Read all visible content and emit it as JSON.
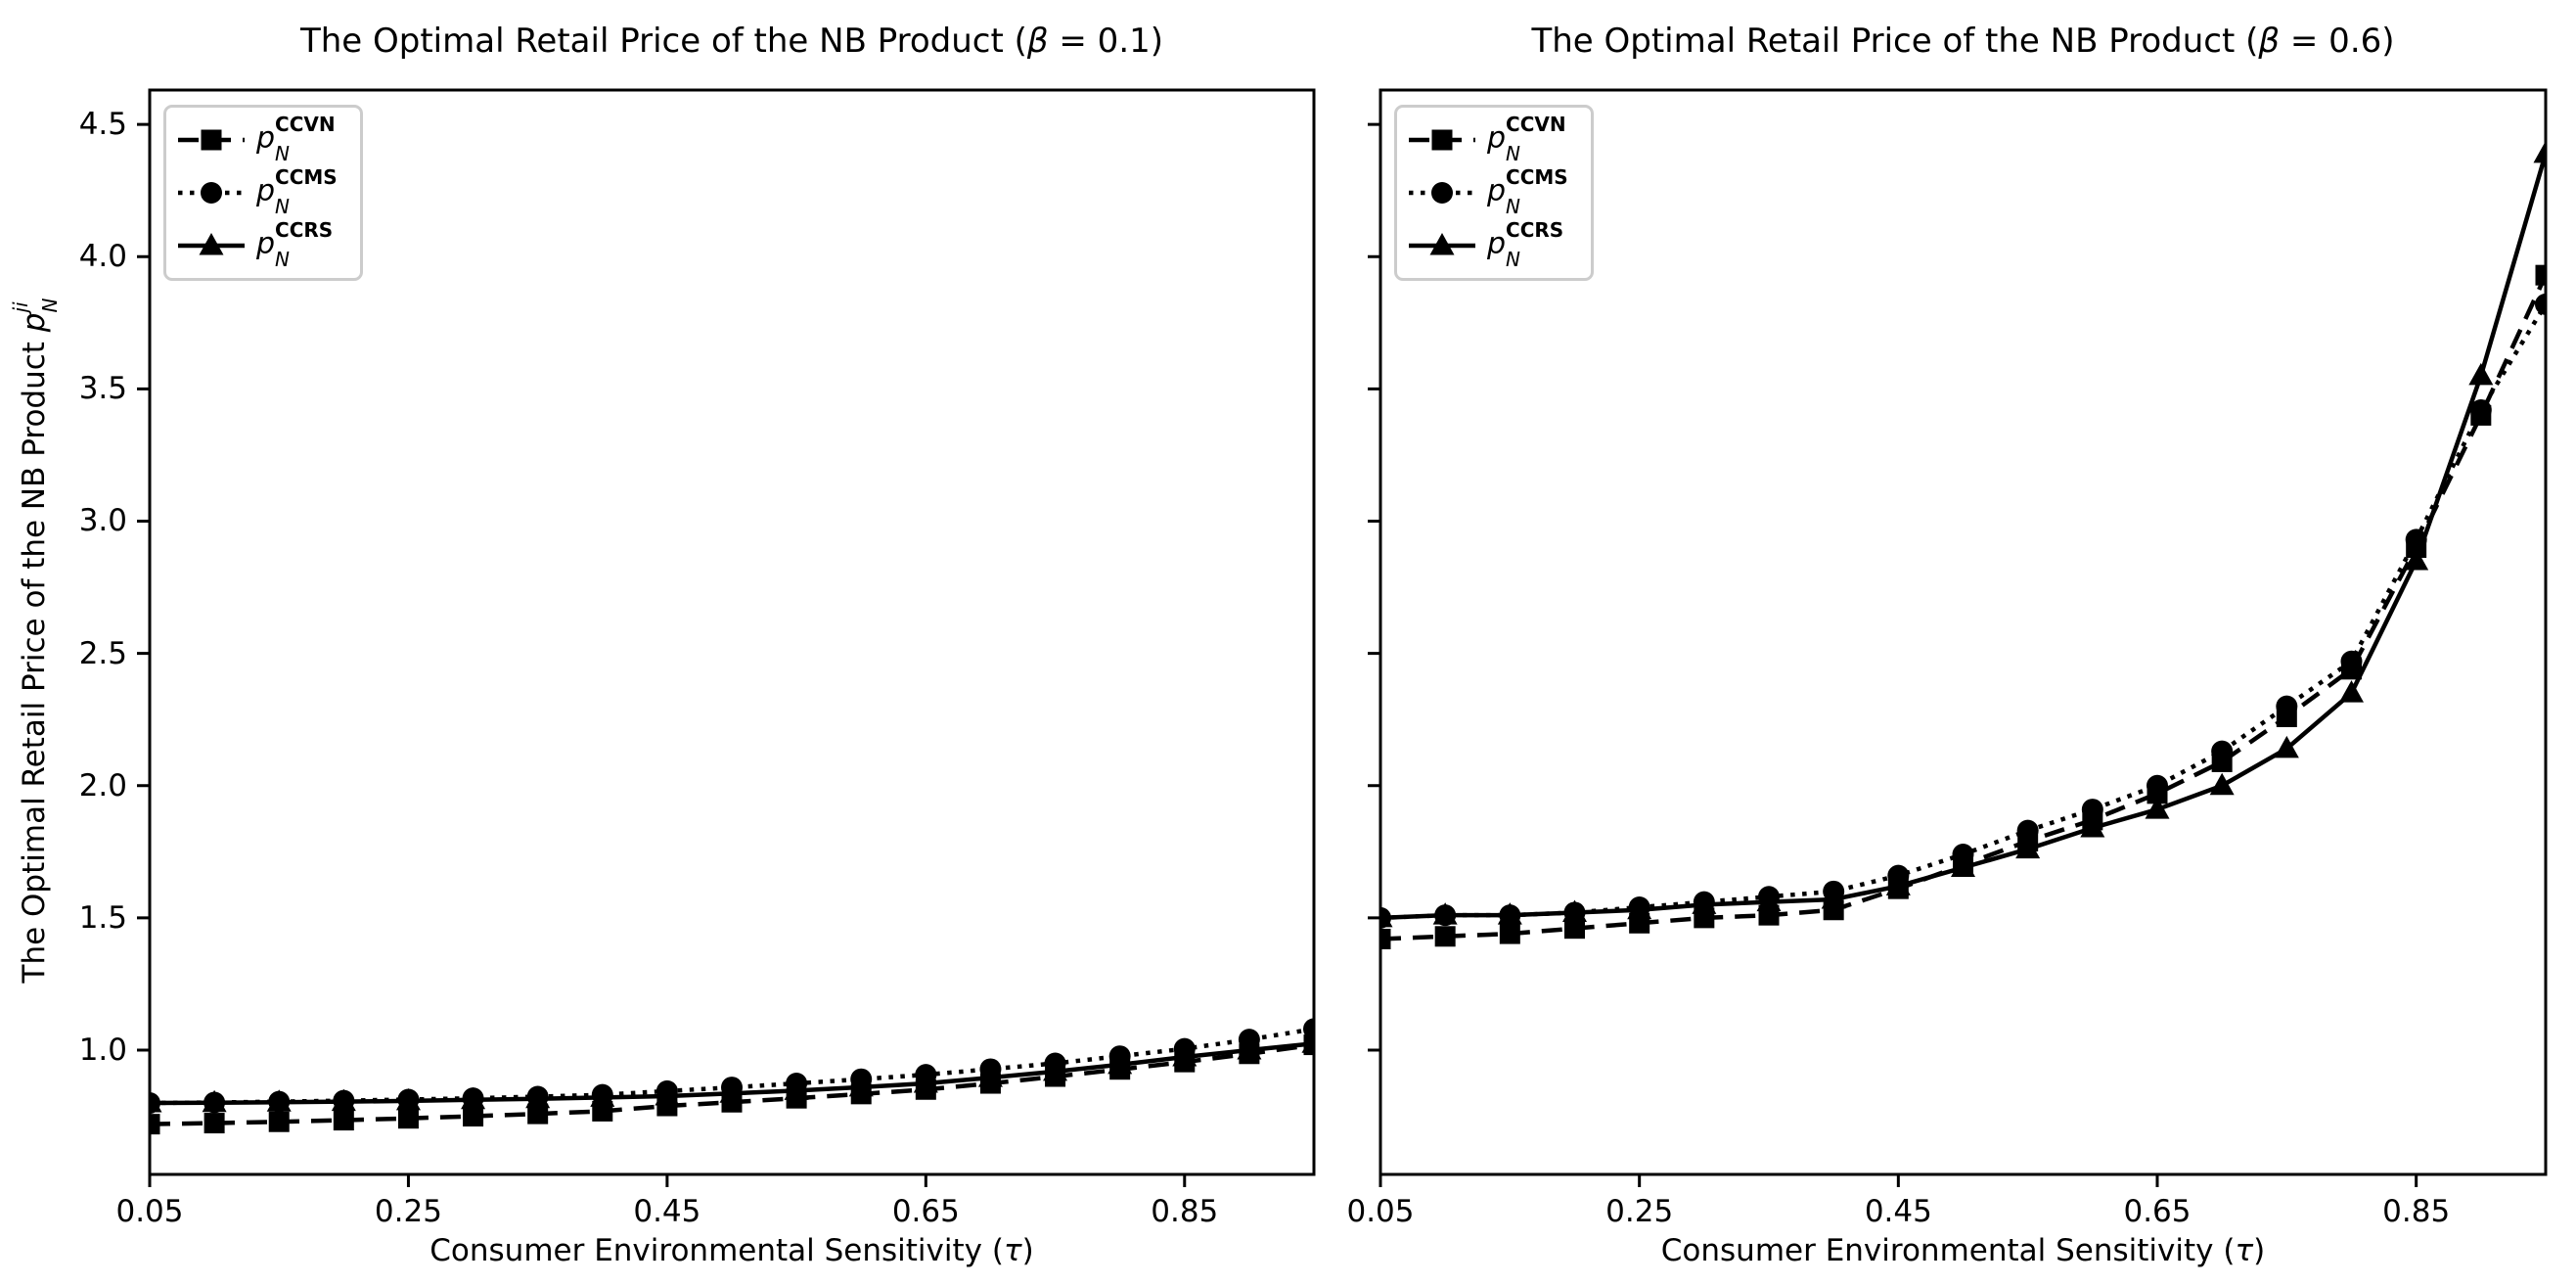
{
  "figure": {
    "background": "#ffffff",
    "ink_color": "#000000",
    "legend_border_color": "#cccccc"
  },
  "ylabel": {
    "prefix": "The Optimal Retail Price of the NB Product ",
    "var": "p",
    "sup": "ji",
    "sub": "N"
  },
  "xlabel": {
    "prefix": "Consumer Environmental Sensitivity (",
    "var": "τ",
    "suffix": ")"
  },
  "chart_data": [
    {
      "type": "line",
      "title": "The Optimal Retail Price of the NB Product (β = 0.1)",
      "title_prefix": "The Optimal Retail Price of the NB Product (",
      "beta_symbol": "β",
      "title_suffix": " = 0.1)",
      "xlabel": "Consumer Environmental Sensitivity (τ)",
      "ylabel": "The Optimal Retail Price of the NB Product p_N^ji",
      "xlim": [
        0.05,
        0.95
      ],
      "ylim": [
        0.53,
        4.63
      ],
      "grid": false,
      "legend_position": "upper left",
      "show_ytick_labels": true,
      "xticks": [
        0.05,
        0.25,
        0.45,
        0.65,
        0.85
      ],
      "xtick_labels": [
        "0.05",
        "0.25",
        "0.45",
        "0.65",
        "0.85"
      ],
      "yticks": [
        1.0,
        1.5,
        2.0,
        2.5,
        3.0,
        3.5,
        4.0,
        4.5
      ],
      "ytick_labels": [
        "1.0",
        "1.5",
        "2.0",
        "2.5",
        "3.0",
        "3.5",
        "4.0",
        "4.5"
      ],
      "x": [
        0.05,
        0.1,
        0.15,
        0.2,
        0.25,
        0.3,
        0.35,
        0.4,
        0.45,
        0.5,
        0.55,
        0.6,
        0.65,
        0.7,
        0.75,
        0.8,
        0.85,
        0.9,
        0.95
      ],
      "series": [
        {
          "name": "CCVN",
          "label_base": "p",
          "label_sup": "CCVN",
          "label_sub": "N",
          "line": "dashed",
          "marker": "square",
          "values": [
            0.72,
            0.724,
            0.729,
            0.735,
            0.742,
            0.75,
            0.759,
            0.769,
            0.789,
            0.803,
            0.818,
            0.834,
            0.851,
            0.874,
            0.9,
            0.927,
            0.955,
            0.986,
            1.02
          ]
        },
        {
          "name": "CCMS",
          "label_base": "p",
          "label_sup": "CCMS",
          "label_sub": "N",
          "line": "dotted",
          "marker": "circle",
          "values": [
            0.8,
            0.802,
            0.805,
            0.809,
            0.813,
            0.818,
            0.824,
            0.831,
            0.845,
            0.859,
            0.874,
            0.89,
            0.907,
            0.928,
            0.95,
            0.977,
            1.005,
            1.04,
            1.08
          ]
        },
        {
          "name": "CCRS",
          "label_base": "p",
          "label_sup": "CCRS",
          "label_sub": "N",
          "line": "solid",
          "marker": "triangle",
          "values": [
            0.8,
            0.801,
            0.803,
            0.805,
            0.808,
            0.812,
            0.816,
            0.821,
            0.826,
            0.836,
            0.847,
            0.86,
            0.874,
            0.896,
            0.919,
            0.945,
            0.974,
            1.0,
            1.025
          ]
        }
      ]
    },
    {
      "type": "line",
      "title": "The Optimal Retail Price of the NB Product (β = 0.6)",
      "title_prefix": "The Optimal Retail Price of the NB Product (",
      "beta_symbol": "β",
      "title_suffix": " = 0.6)",
      "xlabel": "Consumer Environmental Sensitivity (τ)",
      "ylabel": "The Optimal Retail Price of the NB Product p_N^ji",
      "xlim": [
        0.05,
        0.95
      ],
      "ylim": [
        0.53,
        4.63
      ],
      "grid": false,
      "legend_position": "upper left",
      "show_ytick_labels": false,
      "xticks": [
        0.05,
        0.25,
        0.45,
        0.65,
        0.85
      ],
      "xtick_labels": [
        "0.05",
        "0.25",
        "0.45",
        "0.65",
        "0.85"
      ],
      "yticks": [
        1.0,
        1.5,
        2.0,
        2.5,
        3.0,
        3.5,
        4.0,
        4.5
      ],
      "ytick_labels": [
        "1.0",
        "1.5",
        "2.0",
        "2.5",
        "3.0",
        "3.5",
        "4.0",
        "4.5"
      ],
      "x": [
        0.05,
        0.1,
        0.15,
        0.2,
        0.25,
        0.3,
        0.35,
        0.4,
        0.45,
        0.5,
        0.55,
        0.6,
        0.65,
        0.7,
        0.75,
        0.8,
        0.85,
        0.9,
        0.95
      ],
      "series": [
        {
          "name": "CCVN",
          "label_base": "p",
          "label_sup": "CCVN",
          "label_sub": "N",
          "line": "dashed",
          "marker": "square",
          "values": [
            1.42,
            1.43,
            1.44,
            1.46,
            1.48,
            1.5,
            1.51,
            1.53,
            1.61,
            1.7,
            1.79,
            1.87,
            1.97,
            2.09,
            2.26,
            2.44,
            2.9,
            3.4,
            3.93
          ]
        },
        {
          "name": "CCMS",
          "label_base": "p",
          "label_sup": "CCMS",
          "label_sub": "N",
          "line": "dotted",
          "marker": "circle",
          "values": [
            1.5,
            1.51,
            1.51,
            1.52,
            1.54,
            1.56,
            1.58,
            1.6,
            1.66,
            1.74,
            1.83,
            1.91,
            2.0,
            2.13,
            2.3,
            2.47,
            2.93,
            3.42,
            3.82
          ]
        },
        {
          "name": "CCRS",
          "label_base": "p",
          "label_sup": "CCRS",
          "label_sub": "N",
          "line": "solid",
          "marker": "triangle",
          "values": [
            1.5,
            1.51,
            1.51,
            1.52,
            1.53,
            1.55,
            1.56,
            1.57,
            1.62,
            1.69,
            1.76,
            1.84,
            1.91,
            2.0,
            2.14,
            2.35,
            2.85,
            3.55,
            4.39
          ]
        }
      ]
    }
  ]
}
